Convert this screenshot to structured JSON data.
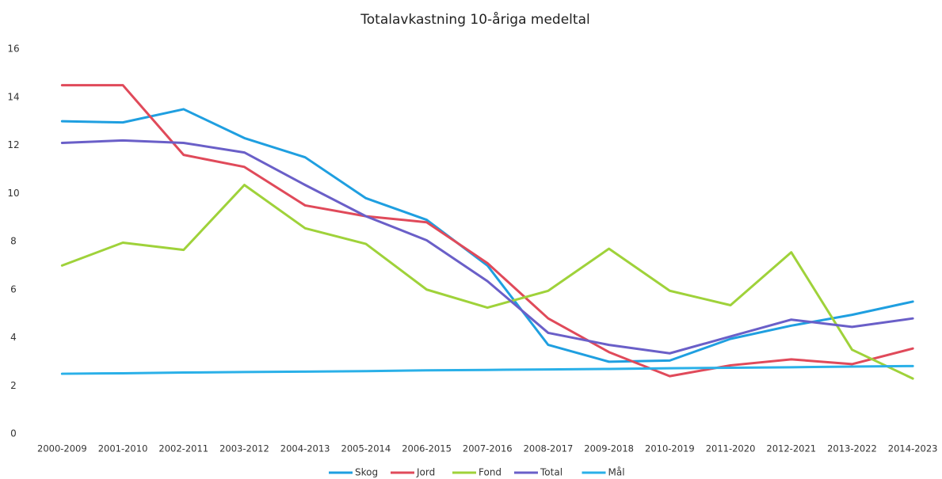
{
  "chart_data": {
    "type": "line",
    "title": "Totalavkastning 10-åriga medeltal",
    "categories": [
      "2000-2009",
      "2001-2010",
      "2002-2011",
      "2003-2012",
      "2004-2013",
      "2005-2014",
      "2006-2015",
      "2007-2016",
      "2008-2017",
      "2009-2018",
      "2010-2019",
      "2011-2020",
      "2012-2021",
      "2013-2022",
      "2014-2023"
    ],
    "series": [
      {
        "name": "Skog",
        "color": "#1f9fe0",
        "values": [
          13.0,
          12.95,
          13.5,
          12.3,
          11.5,
          9.8,
          8.9,
          7.0,
          3.7,
          3.0,
          3.05,
          3.95,
          4.5,
          4.95,
          5.5
        ]
      },
      {
        "name": "Jord",
        "color": "#e04a5a",
        "values": [
          14.5,
          14.5,
          11.6,
          11.1,
          9.5,
          9.05,
          8.8,
          7.1,
          4.8,
          3.4,
          2.4,
          2.85,
          3.1,
          2.9,
          3.55
        ]
      },
      {
        "name": "Fond",
        "color": "#9fd23a",
        "values": [
          7.0,
          7.95,
          7.65,
          10.35,
          8.55,
          7.9,
          6.0,
          5.25,
          5.95,
          7.7,
          5.95,
          5.35,
          7.55,
          3.5,
          2.3
        ]
      },
      {
        "name": "Total",
        "color": "#6a5fc8",
        "values": [
          12.1,
          12.2,
          12.1,
          11.7,
          10.35,
          9.05,
          8.05,
          6.35,
          4.2,
          3.7,
          3.35,
          4.05,
          4.75,
          4.45,
          4.8
        ]
      },
      {
        "name": "Mål",
        "color": "#2ab0e8",
        "values": [
          2.5,
          2.52,
          2.55,
          2.57,
          2.59,
          2.61,
          2.64,
          2.66,
          2.68,
          2.7,
          2.73,
          2.75,
          2.77,
          2.8,
          2.82
        ]
      }
    ],
    "ylim": [
      0,
      16
    ],
    "yticks": [
      0,
      2,
      4,
      6,
      8,
      10,
      12,
      14,
      16
    ],
    "grid": false,
    "legend": "bottom"
  }
}
